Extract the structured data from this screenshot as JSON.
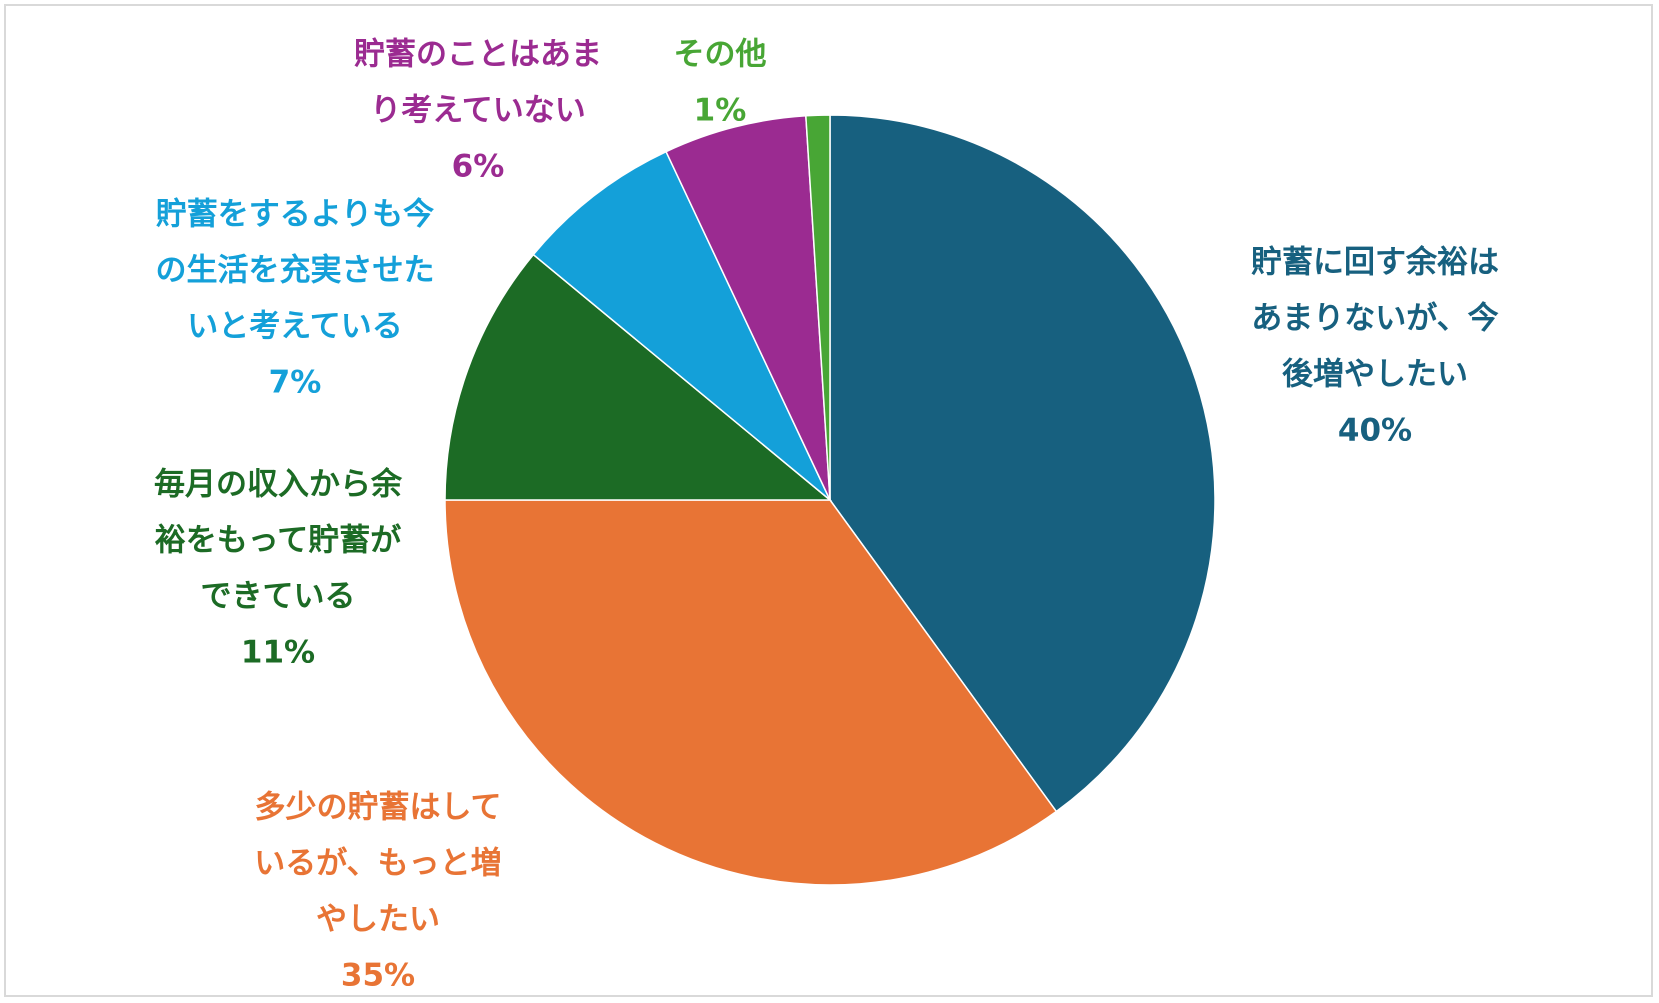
{
  "chart_data": {
    "type": "pie",
    "title": "",
    "start_angle_deg": 0,
    "direction": "clockwise",
    "slices": [
      {
        "label_lines": [
          "貯蓄に回す余裕は",
          "あまりないが、今",
          "後増やしたい"
        ],
        "value": 40,
        "value_label": "40%",
        "color": "#17607f"
      },
      {
        "label_lines": [
          "多少の貯蓄はして",
          "いるが、もっと増",
          "やしたい"
        ],
        "value": 35,
        "value_label": "35%",
        "color": "#e87435"
      },
      {
        "label_lines": [
          "毎月の収入から余",
          "裕をもって貯蓄が",
          "できている"
        ],
        "value": 11,
        "value_label": "11%",
        "color": "#1c6b25"
      },
      {
        "label_lines": [
          "貯蓄をするよりも今",
          "の生活を充実させた",
          "いと考えている"
        ],
        "value": 7,
        "value_label": "7%",
        "color": "#14a0d9"
      },
      {
        "label_lines": [
          "貯蓄のことはあま",
          "り考えていない"
        ],
        "value": 6,
        "value_label": "6%",
        "color": "#9b2b91"
      },
      {
        "label_lines": [
          "その他"
        ],
        "value": 1,
        "value_label": "1%",
        "color": "#48a635"
      }
    ]
  }
}
